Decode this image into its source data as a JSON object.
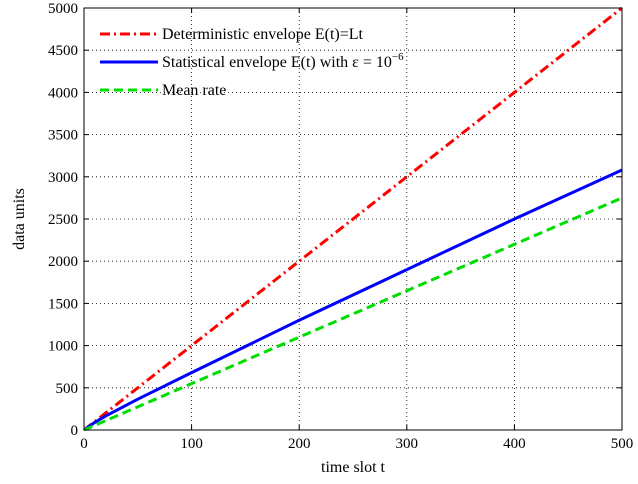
{
  "chart_data": {
    "type": "line",
    "xlabel": "time slot t",
    "ylabel": "data units",
    "xlim": [
      0,
      500
    ],
    "ylim": [
      0,
      5000
    ],
    "xticks": [
      0,
      100,
      200,
      300,
      400,
      500
    ],
    "yticks": [
      0,
      500,
      1000,
      1500,
      2000,
      2500,
      3000,
      3500,
      4000,
      4500,
      5000
    ],
    "grid": true,
    "legend_position": "top-left",
    "series": [
      {
        "name": "Deterministic envelope E(t)=Lt",
        "style": "dash-dot",
        "color": "#ff0000",
        "x": [
          0,
          500
        ],
        "y": [
          0,
          5000
        ]
      },
      {
        "name": "Statistical envelope E(t) with ε = 10⁻⁶",
        "legend_base": "Statistical envelope E(t) with ε = 10",
        "legend_sup": "−6",
        "style": "solid",
        "color": "#0000ff",
        "x": [
          0,
          10,
          20,
          50,
          100,
          200,
          300,
          400,
          500
        ],
        "y": [
          0,
          90,
          165,
          365,
          680,
          1300,
          1900,
          2500,
          3080
        ]
      },
      {
        "name": "Mean rate",
        "style": "dashed",
        "color": "#00dd00",
        "x": [
          0,
          500
        ],
        "y": [
          0,
          2750
        ]
      }
    ]
  }
}
